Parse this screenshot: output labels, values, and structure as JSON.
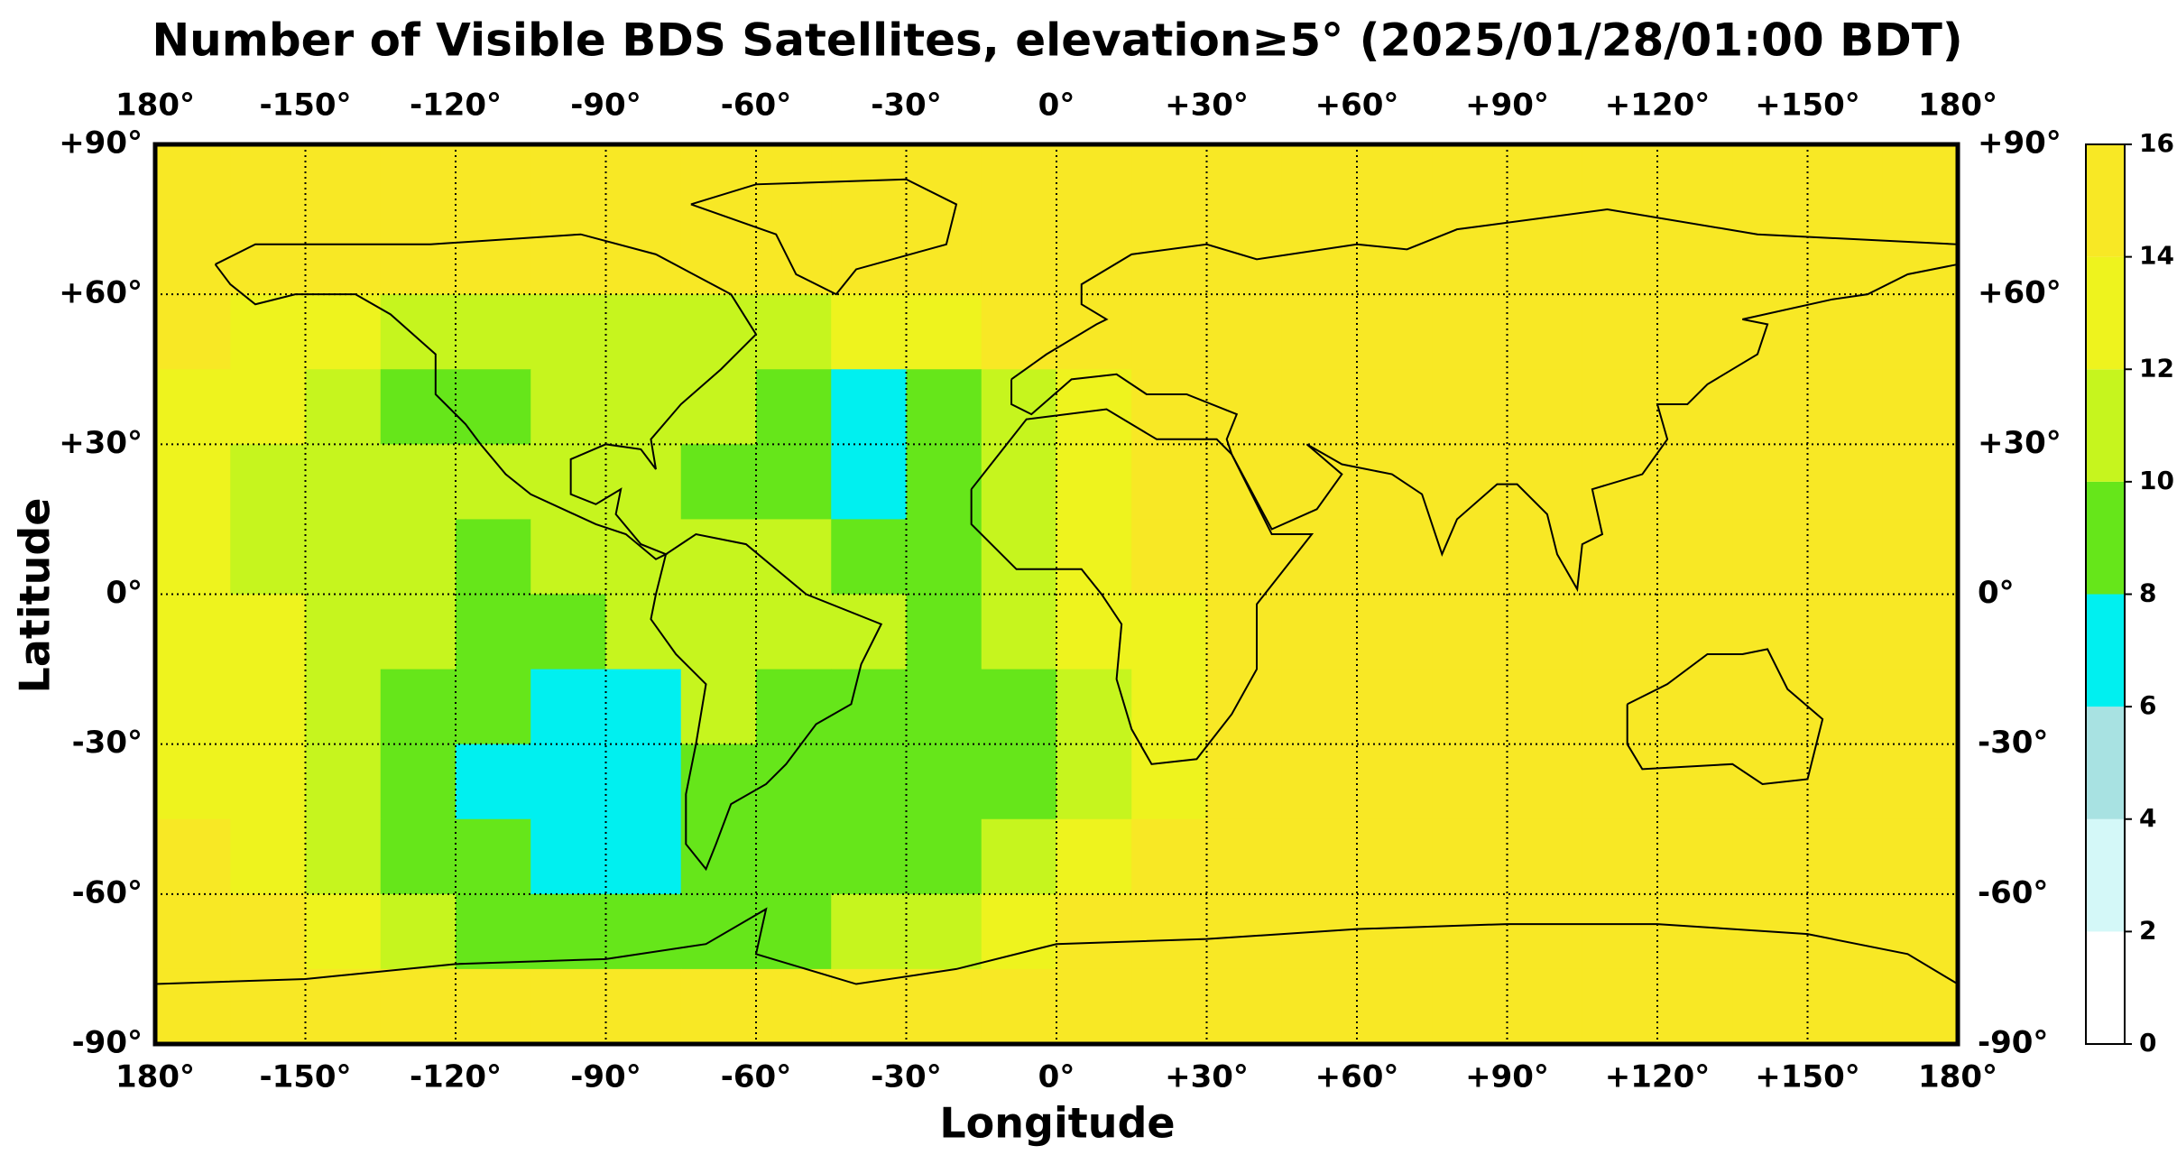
{
  "chart_data": {
    "type": "heatmap",
    "title": "Number of Visible BDS Satellites, elevation≥5° (2025/01/28/01:00 BDT)",
    "x_label": "Longitude",
    "y_label": "Latitude",
    "xlim": [
      -180,
      180
    ],
    "ylim": [
      -90,
      90
    ],
    "xticks": [
      {
        "value": -180,
        "label": "180°"
      },
      {
        "value": -150,
        "label": "-150°"
      },
      {
        "value": -120,
        "label": "-120°"
      },
      {
        "value": -90,
        "label": "-90°"
      },
      {
        "value": -60,
        "label": "-60°"
      },
      {
        "value": -30,
        "label": "-30°"
      },
      {
        "value": 0,
        "label": "0°"
      },
      {
        "value": 30,
        "label": "+30°"
      },
      {
        "value": 60,
        "label": "+60°"
      },
      {
        "value": 90,
        "label": "+90°"
      },
      {
        "value": 120,
        "label": "+120°"
      },
      {
        "value": 150,
        "label": "+150°"
      },
      {
        "value": 180,
        "label": "180°"
      }
    ],
    "yticks": [
      {
        "value": -90,
        "label": "-90°"
      },
      {
        "value": -60,
        "label": "-60°"
      },
      {
        "value": -30,
        "label": "-30°"
      },
      {
        "value": 0,
        "label": "0°"
      },
      {
        "value": 30,
        "label": "+30°"
      },
      {
        "value": 60,
        "label": "+60°"
      },
      {
        "value": 90,
        "label": "+90°"
      }
    ],
    "grid": true,
    "x": [
      -172.5,
      -157.5,
      -142.5,
      -127.5,
      -112.5,
      -97.5,
      -82.5,
      -67.5,
      -52.5,
      -37.5,
      -22.5,
      -7.5,
      7.5,
      22.5,
      37.5,
      52.5,
      67.5,
      82.5,
      97.5,
      112.5,
      127.5,
      142.5,
      157.5,
      172.5
    ],
    "y": [
      82.5,
      67.5,
      52.5,
      37.5,
      22.5,
      7.5,
      -7.5,
      -22.5,
      -37.5,
      -52.5,
      -67.5,
      -82.5
    ],
    "values": [
      [
        15,
        15,
        15,
        15,
        15,
        15,
        15,
        15,
        15,
        15,
        15,
        15,
        15,
        15,
        15,
        15,
        15,
        15,
        15,
        15,
        15,
        15,
        15,
        15
      ],
      [
        15,
        15,
        15,
        15,
        15,
        15,
        15,
        15,
        15,
        15,
        15,
        15,
        15,
        15,
        15,
        15,
        15,
        15,
        15,
        15,
        15,
        15,
        15,
        15
      ],
      [
        15,
        13,
        13,
        11,
        11,
        11,
        11,
        11,
        11,
        13,
        13,
        15,
        15,
        15,
        15,
        15,
        15,
        15,
        15,
        15,
        15,
        15,
        15,
        15
      ],
      [
        13,
        13,
        11,
        9,
        9,
        11,
        11,
        11,
        9,
        7,
        9,
        11,
        13,
        15,
        15,
        15,
        15,
        15,
        15,
        15,
        15,
        15,
        15,
        15
      ],
      [
        13,
        11,
        11,
        11,
        11,
        11,
        11,
        9,
        9,
        7,
        9,
        11,
        13,
        15,
        15,
        15,
        15,
        15,
        15,
        15,
        15,
        15,
        15,
        15
      ],
      [
        13,
        11,
        11,
        11,
        9,
        11,
        11,
        11,
        11,
        9,
        9,
        11,
        13,
        15,
        15,
        15,
        15,
        15,
        15,
        15,
        15,
        15,
        15,
        15
      ],
      [
        13,
        13,
        11,
        11,
        9,
        9,
        11,
        11,
        11,
        11,
        9,
        11,
        13,
        13,
        15,
        15,
        15,
        15,
        15,
        15,
        15,
        15,
        15,
        15
      ],
      [
        13,
        13,
        11,
        9,
        9,
        7,
        7,
        11,
        9,
        9,
        9,
        9,
        11,
        13,
        15,
        15,
        15,
        15,
        15,
        15,
        15,
        15,
        15,
        15
      ],
      [
        13,
        13,
        11,
        9,
        7,
        7,
        7,
        9,
        9,
        9,
        9,
        9,
        11,
        13,
        15,
        15,
        15,
        15,
        15,
        15,
        15,
        15,
        15,
        15
      ],
      [
        15,
        13,
        11,
        9,
        9,
        7,
        7,
        9,
        9,
        9,
        9,
        11,
        13,
        15,
        15,
        15,
        15,
        15,
        15,
        15,
        15,
        15,
        15,
        15
      ],
      [
        15,
        15,
        13,
        11,
        9,
        9,
        9,
        9,
        9,
        11,
        11,
        13,
        15,
        15,
        15,
        15,
        15,
        15,
        15,
        15,
        15,
        15,
        15,
        15
      ],
      [
        15,
        15,
        15,
        15,
        15,
        15,
        15,
        15,
        15,
        15,
        15,
        15,
        15,
        15,
        15,
        15,
        15,
        15,
        15,
        15,
        15,
        15,
        15,
        15
      ]
    ],
    "colorbar": {
      "levels": [
        0,
        2,
        4,
        6,
        8,
        10,
        12,
        14,
        16
      ],
      "colors": [
        "#ffffff",
        "#d4f8f8",
        "#a8e2e2",
        "#00f0f0",
        "#66e61a",
        "#c6f51e",
        "#eef31e",
        "#f8e825"
      ],
      "ticks": [
        0,
        2,
        4,
        6,
        8,
        10,
        12,
        14,
        16
      ]
    }
  }
}
